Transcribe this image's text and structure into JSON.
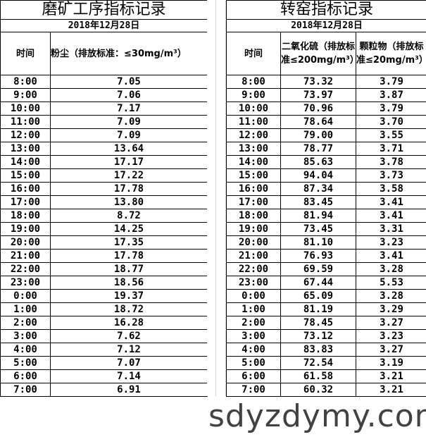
{
  "left": {
    "title": "磨矿工序指标记录",
    "date": "2018年12月28日",
    "headers": [
      "时间",
      "粉尘（排放标准：≤30mg/m³）"
    ],
    "rows": [
      [
        "8:00",
        "7.05"
      ],
      [
        "9:00",
        "7.06"
      ],
      [
        "10:00",
        "7.17"
      ],
      [
        "11:00",
        "7.09"
      ],
      [
        "12:00",
        "7.09"
      ],
      [
        "13:00",
        "13.64"
      ],
      [
        "14:00",
        "17.17"
      ],
      [
        "15:00",
        "17.22"
      ],
      [
        "16:00",
        "17.78"
      ],
      [
        "17:00",
        "13.80"
      ],
      [
        "18:00",
        "8.72"
      ],
      [
        "19:00",
        "14.25"
      ],
      [
        "20:00",
        "17.35"
      ],
      [
        "21:00",
        "17.78"
      ],
      [
        "22:00",
        "18.77"
      ],
      [
        "23:00",
        "18.56"
      ],
      [
        "0:00",
        "19.37"
      ],
      [
        "1:00",
        "18.72"
      ],
      [
        "2:00",
        "16.28"
      ],
      [
        "3:00",
        "7.62"
      ],
      [
        "4:00",
        "7.12"
      ],
      [
        "5:00",
        "7.07"
      ],
      [
        "6:00",
        "7.14"
      ],
      [
        "7:00",
        "6.91"
      ]
    ]
  },
  "right": {
    "title": "转窑指标记录",
    "date": "2018年12月28日",
    "headers": [
      "时间",
      "二氧化硫（排放标准≤200mg/m³）",
      "颗粒物（排放标准≤20mg/m³）"
    ],
    "rows": [
      [
        "8:00",
        "73.32",
        "3.79"
      ],
      [
        "9:00",
        "73.97",
        "3.87"
      ],
      [
        "10:00",
        "70.96",
        "3.79"
      ],
      [
        "11:00",
        "78.64",
        "3.70"
      ],
      [
        "12:00",
        "79.00",
        "3.55"
      ],
      [
        "13:00",
        "78.77",
        "3.71"
      ],
      [
        "14:00",
        "85.63",
        "3.78"
      ],
      [
        "15:00",
        "94.04",
        "3.73"
      ],
      [
        "16:00",
        "87.34",
        "3.58"
      ],
      [
        "17:00",
        "83.45",
        "3.41"
      ],
      [
        "18:00",
        "81.94",
        "3.41"
      ],
      [
        "19:00",
        "73.45",
        "3.31"
      ],
      [
        "20:00",
        "81.10",
        "3.23"
      ],
      [
        "21:00",
        "76.93",
        "3.41"
      ],
      [
        "22:00",
        "69.59",
        "3.28"
      ],
      [
        "23:00",
        "67.44",
        "5.53"
      ],
      [
        "0:00",
        "65.09",
        "3.28"
      ],
      [
        "1:00",
        "81.19",
        "3.29"
      ],
      [
        "2:00",
        "78.45",
        "3.27"
      ],
      [
        "3:00",
        "73.12",
        "3.23"
      ],
      [
        "4:00",
        "83.83",
        "3.27"
      ],
      [
        "5:00",
        "72.54",
        "3.19"
      ],
      [
        "6:00",
        "61.58",
        "3.21"
      ],
      [
        "7:00",
        "60.32",
        "3.21"
      ]
    ]
  },
  "watermark": "sdyzdymy.com"
}
